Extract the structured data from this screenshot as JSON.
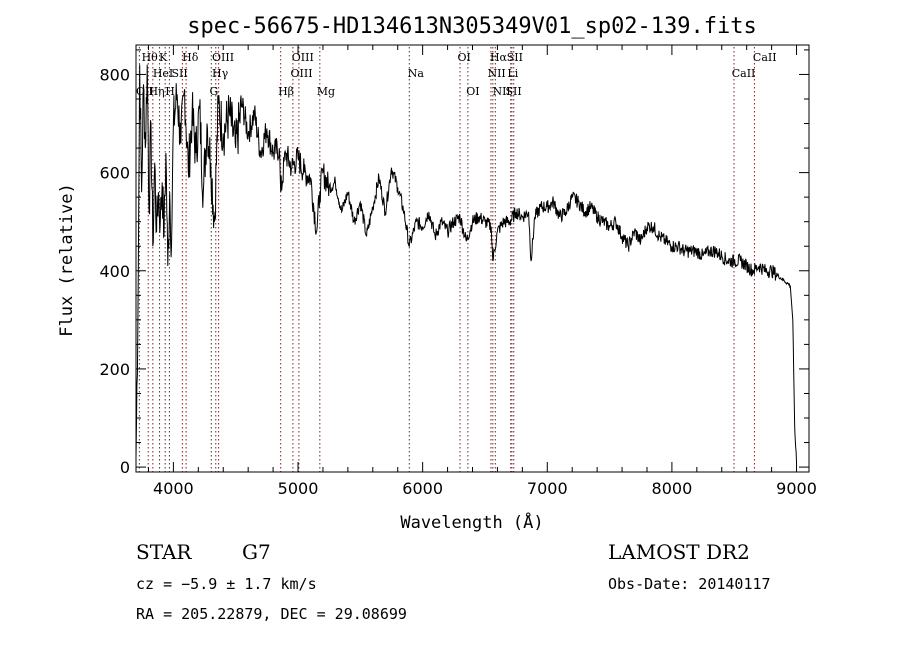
{
  "chart_data": {
    "type": "line",
    "title": "spec-56675-HD134613N305349V01_sp02-139.fits",
    "xlabel": "Wavelength (Å)",
    "ylabel": "Flux (relative)",
    "xlim": [
      3700,
      9100
    ],
    "ylim": [
      -10,
      860
    ],
    "xticks": [
      "4000",
      "5000",
      "6000",
      "7000",
      "8000",
      "9000"
    ],
    "yticks": [
      "0",
      "200",
      "400",
      "600",
      "800"
    ],
    "grid": false,
    "series": [
      {
        "x": [
          3700,
          3715,
          3730,
          3745,
          3760,
          3775,
          3790,
          3805,
          3820,
          3835,
          3850,
          3865,
          3880,
          3895,
          3910,
          3925,
          3940,
          3955,
          3970,
          3985,
          4000,
          4030,
          4060,
          4090,
          4120,
          4150,
          4180,
          4210,
          4240,
          4270,
          4300,
          4330,
          4360,
          4400,
          4450,
          4500,
          4550,
          4600,
          4650,
          4700,
          4750,
          4800,
          4850,
          4861,
          4900,
          4950,
          5000,
          5050,
          5100,
          5150,
          5175,
          5200,
          5250,
          5300,
          5350,
          5400,
          5450,
          5500,
          5550,
          5600,
          5650,
          5700,
          5750,
          5800,
          5850,
          5893,
          5950,
          6000,
          6050,
          6100,
          6150,
          6200,
          6250,
          6300,
          6350,
          6400,
          6450,
          6500,
          6550,
          6563,
          6600,
          6650,
          6700,
          6750,
          6800,
          6850,
          6870,
          6900,
          6950,
          7000,
          7050,
          7100,
          7150,
          7200,
          7250,
          7300,
          7350,
          7400,
          7450,
          7500,
          7550,
          7600,
          7650,
          7700,
          7750,
          7800,
          7850,
          7900,
          7950,
          8000,
          8050,
          8100,
          8150,
          8200,
          8250,
          8300,
          8350,
          8400,
          8450,
          8500,
          8550,
          8600,
          8650,
          8700,
          8750,
          8800,
          8850,
          8900,
          8950,
          8970,
          8985,
          9000
        ],
        "y": [
          20,
          300,
          820,
          560,
          780,
          650,
          820,
          520,
          700,
          450,
          620,
          480,
          560,
          500,
          580,
          470,
          640,
          410,
          560,
          450,
          700,
          760,
          660,
          770,
          600,
          720,
          640,
          730,
          560,
          700,
          620,
          500,
          740,
          680,
          720,
          650,
          740,
          680,
          720,
          640,
          690,
          640,
          650,
          560,
          640,
          610,
          630,
          600,
          590,
          480,
          560,
          600,
          570,
          580,
          520,
          560,
          500,
          540,
          470,
          530,
          590,
          520,
          610,
          570,
          520,
          450,
          500,
          490,
          520,
          470,
          500,
          480,
          500,
          510,
          460,
          500,
          510,
          500,
          490,
          420,
          480,
          500,
          500,
          520,
          510,
          520,
          420,
          510,
          530,
          530,
          540,
          510,
          520,
          550,
          540,
          520,
          530,
          510,
          500,
          490,
          500,
          470,
          450,
          480,
          460,
          490,
          490,
          470,
          460,
          450,
          450,
          440,
          440,
          440,
          430,
          440,
          440,
          430,
          420,
          420,
          420,
          410,
          400,
          410,
          400,
          400,
          390,
          380,
          370,
          300,
          80,
          10
        ]
      }
    ],
    "lines": [
      {
        "label": "OII",
        "x": 3727,
        "row": 3,
        "label_x": 3700
      },
      {
        "label": "Hθ",
        "x": 3798,
        "row": 1,
        "label_x": 3745
      },
      {
        "label": "Hη",
        "x": 3835,
        "row": 3,
        "label_x": 3800
      },
      {
        "label": "HeI",
        "x": 3889,
        "row": 2,
        "label_x": 3835
      },
      {
        "label": "K",
        "x": 3934,
        "row": 1,
        "label_x": 3885
      },
      {
        "label": "H",
        "x": 3968,
        "row": 3,
        "label_x": 3935
      },
      {
        "label": "SII",
        "x": 4072,
        "row": 2,
        "label_x": 3985
      },
      {
        "label": "Hδ",
        "x": 4102,
        "row": 1,
        "label_x": 4070
      },
      {
        "label": "G",
        "x": 4304,
        "row": 3,
        "label_x": 4290
      },
      {
        "label": "Hγ",
        "x": 4340,
        "row": 2,
        "label_x": 4310
      },
      {
        "label": "OIII",
        "x": 4363,
        "row": 1,
        "label_x": 4310
      },
      {
        "label": "Hβ",
        "x": 4861,
        "row": 3,
        "label_x": 4840
      },
      {
        "label": "OIII",
        "x": 4959,
        "row": 2,
        "label_x": 4940
      },
      {
        "label": "OIII",
        "x": 5007,
        "row": 1,
        "label_x": 4950
      },
      {
        "label": "Mg",
        "x": 5175,
        "row": 3,
        "label_x": 5150
      },
      {
        "label": "Na",
        "x": 5893,
        "row": 2,
        "label_x": 5880
      },
      {
        "label": "OI",
        "x": 6300,
        "row": 1,
        "label_x": 6280
      },
      {
        "label": "OI",
        "x": 6363,
        "row": 3,
        "label_x": 6350
      },
      {
        "label": "NII",
        "x": 6548,
        "row": 2,
        "label_x": 6520
      },
      {
        "label": "Hα",
        "x": 6563,
        "row": 1,
        "label_x": 6540
      },
      {
        "label": "NII",
        "x": 6583,
        "row": 3,
        "label_x": 6560
      },
      {
        "label": "Li",
        "x": 6707,
        "row": 2,
        "label_x": 6680
      },
      {
        "label": "SII",
        "x": 6716,
        "row": 1,
        "label_x": 6675
      },
      {
        "label": "SII",
        "x": 6731,
        "row": 3,
        "label_x": 6665
      },
      {
        "label": "CaII",
        "x": 8498,
        "row": 2,
        "label_x": 8480
      },
      {
        "label": "CaII",
        "x": 8662,
        "row": 1,
        "label_x": 8650
      }
    ]
  },
  "info": {
    "object_type": "STAR",
    "subclass": "G7",
    "survey": "LAMOST DR2",
    "cz": "cz = −5.9 ± 1.7 km/s",
    "obs_date": "Obs-Date: 20140117",
    "coords": "RA = 205.22879, DEC =  29.08699"
  },
  "colors": {
    "line_marker": "#8b1a1a",
    "spectrum": "#000000",
    "background": "#ffffff"
  }
}
